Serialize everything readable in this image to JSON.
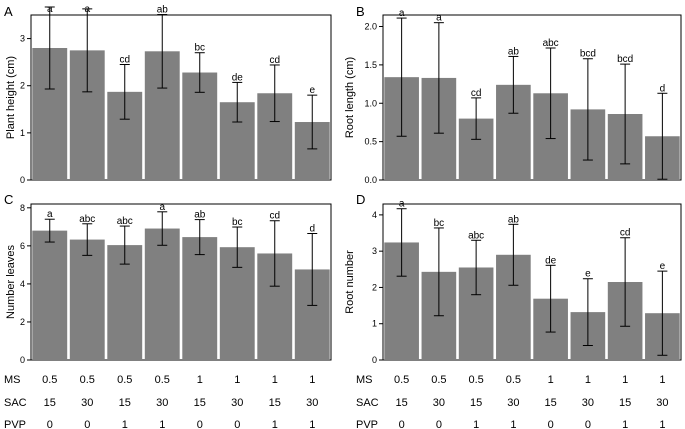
{
  "chart_data": [
    {
      "type": "bar",
      "panel_label": "A",
      "ylabel": "Plant height (cm)",
      "ylim": [
        0,
        3.5
      ],
      "yticks": [
        0,
        1,
        2,
        3
      ],
      "ytick_labels": [
        "0",
        "1",
        "2",
        "3"
      ],
      "values": [
        2.8,
        2.75,
        1.87,
        2.73,
        2.28,
        1.65,
        1.84,
        1.23
      ],
      "errors": [
        0.87,
        0.88,
        0.58,
        0.78,
        0.42,
        0.42,
        0.6,
        0.57
      ],
      "letters": [
        "a",
        "a",
        "cd",
        "ab",
        "bc",
        "de",
        "cd",
        "e"
      ],
      "bar_color": "#808080"
    },
    {
      "type": "bar",
      "panel_label": "B",
      "ylabel": "Root length (cm)",
      "ylim": [
        0,
        2.15
      ],
      "yticks": [
        0,
        0.5,
        1.0,
        1.5,
        2.0
      ],
      "ytick_labels": [
        "0.0",
        "0.5",
        "1.0",
        "1.5",
        "2.0"
      ],
      "values": [
        1.34,
        1.33,
        0.8,
        1.24,
        1.13,
        0.92,
        0.86,
        0.57
      ],
      "errors": [
        0.77,
        0.72,
        0.27,
        0.37,
        0.59,
        0.66,
        0.65,
        0.56
      ],
      "letters": [
        "a",
        "a",
        "cd",
        "ab",
        "abc",
        "bcd",
        "bcd",
        "d"
      ],
      "bar_color": "#808080"
    },
    {
      "type": "bar",
      "panel_label": "C",
      "ylabel": "Number leaves",
      "ylim": [
        0,
        8.2
      ],
      "yticks": [
        0,
        2,
        4,
        6,
        8
      ],
      "ytick_labels": [
        "0",
        "2",
        "4",
        "6",
        "8"
      ],
      "values": [
        6.8,
        6.33,
        6.04,
        6.91,
        6.46,
        5.93,
        5.6,
        4.76
      ],
      "errors": [
        0.6,
        0.83,
        1.0,
        0.88,
        0.92,
        1.06,
        1.72,
        1.89
      ],
      "letters": [
        "a",
        "abc",
        "abc",
        "a",
        "ab",
        "bc",
        "cd",
        "d"
      ],
      "bar_color": "#808080"
    },
    {
      "type": "bar",
      "panel_label": "D",
      "ylabel": "Root number",
      "ylim": [
        0,
        4.3
      ],
      "yticks": [
        0,
        1,
        2,
        3,
        4
      ],
      "ytick_labels": [
        "0",
        "1",
        "2",
        "3",
        "4"
      ],
      "values": [
        3.24,
        2.43,
        2.55,
        2.9,
        1.69,
        1.32,
        2.15,
        1.29
      ],
      "errors": [
        0.93,
        1.21,
        0.75,
        0.84,
        0.92,
        0.92,
        1.22,
        1.16
      ],
      "letters": [
        "a",
        "bc",
        "abc",
        "ab",
        "de",
        "e",
        "cd",
        "e"
      ],
      "bar_color": "#808080"
    }
  ],
  "treatment_table": {
    "rows": [
      {
        "label": "MS",
        "values": [
          "0.5",
          "0.5",
          "0.5",
          "0.5",
          "1",
          "1",
          "1",
          "1"
        ]
      },
      {
        "label": "SAC",
        "values": [
          "15",
          "30",
          "15",
          "30",
          "15",
          "30",
          "15",
          "30"
        ]
      },
      {
        "label": "PVP",
        "values": [
          "0",
          "0",
          "1",
          "1",
          "0",
          "0",
          "1",
          "1"
        ]
      }
    ]
  }
}
